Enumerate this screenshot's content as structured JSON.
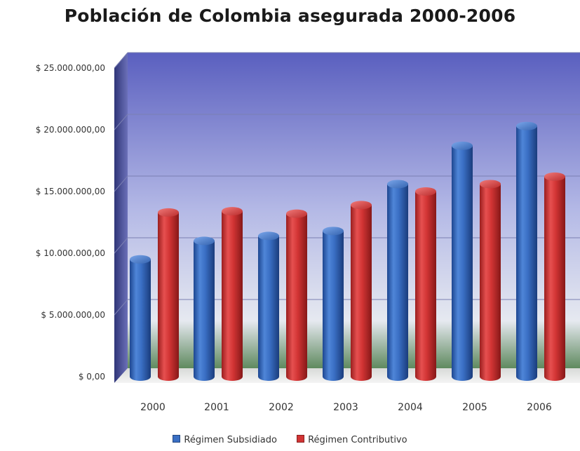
{
  "chart_data": {
    "type": "bar",
    "title": "Población de Colombia asegurada 2000-2006",
    "categories": [
      "2000",
      "2001",
      "2002",
      "2003",
      "2004",
      "2005",
      "2006"
    ],
    "series": [
      {
        "name": "Régimen Subsidiado",
        "color": "#3a6fc4",
        "values": [
          9500000,
          11000000,
          11400000,
          11800000,
          15600000,
          18700000,
          20300000
        ]
      },
      {
        "name": "Régimen Contributivo",
        "color": "#d23434",
        "values": [
          13300000,
          13400000,
          13200000,
          13900000,
          15000000,
          15600000,
          16200000
        ]
      }
    ],
    "ylim": [
      0,
      25000000
    ],
    "yticks": [
      "$ 0,00",
      "$ 5.000.000,00",
      "$ 10.000.000,00",
      "$ 15.000.000,00",
      "$ 20.000.000,00",
      "$ 25.000.000,00"
    ],
    "xlabel": "",
    "ylabel": "",
    "grid": true,
    "legend_position": "bottom"
  }
}
